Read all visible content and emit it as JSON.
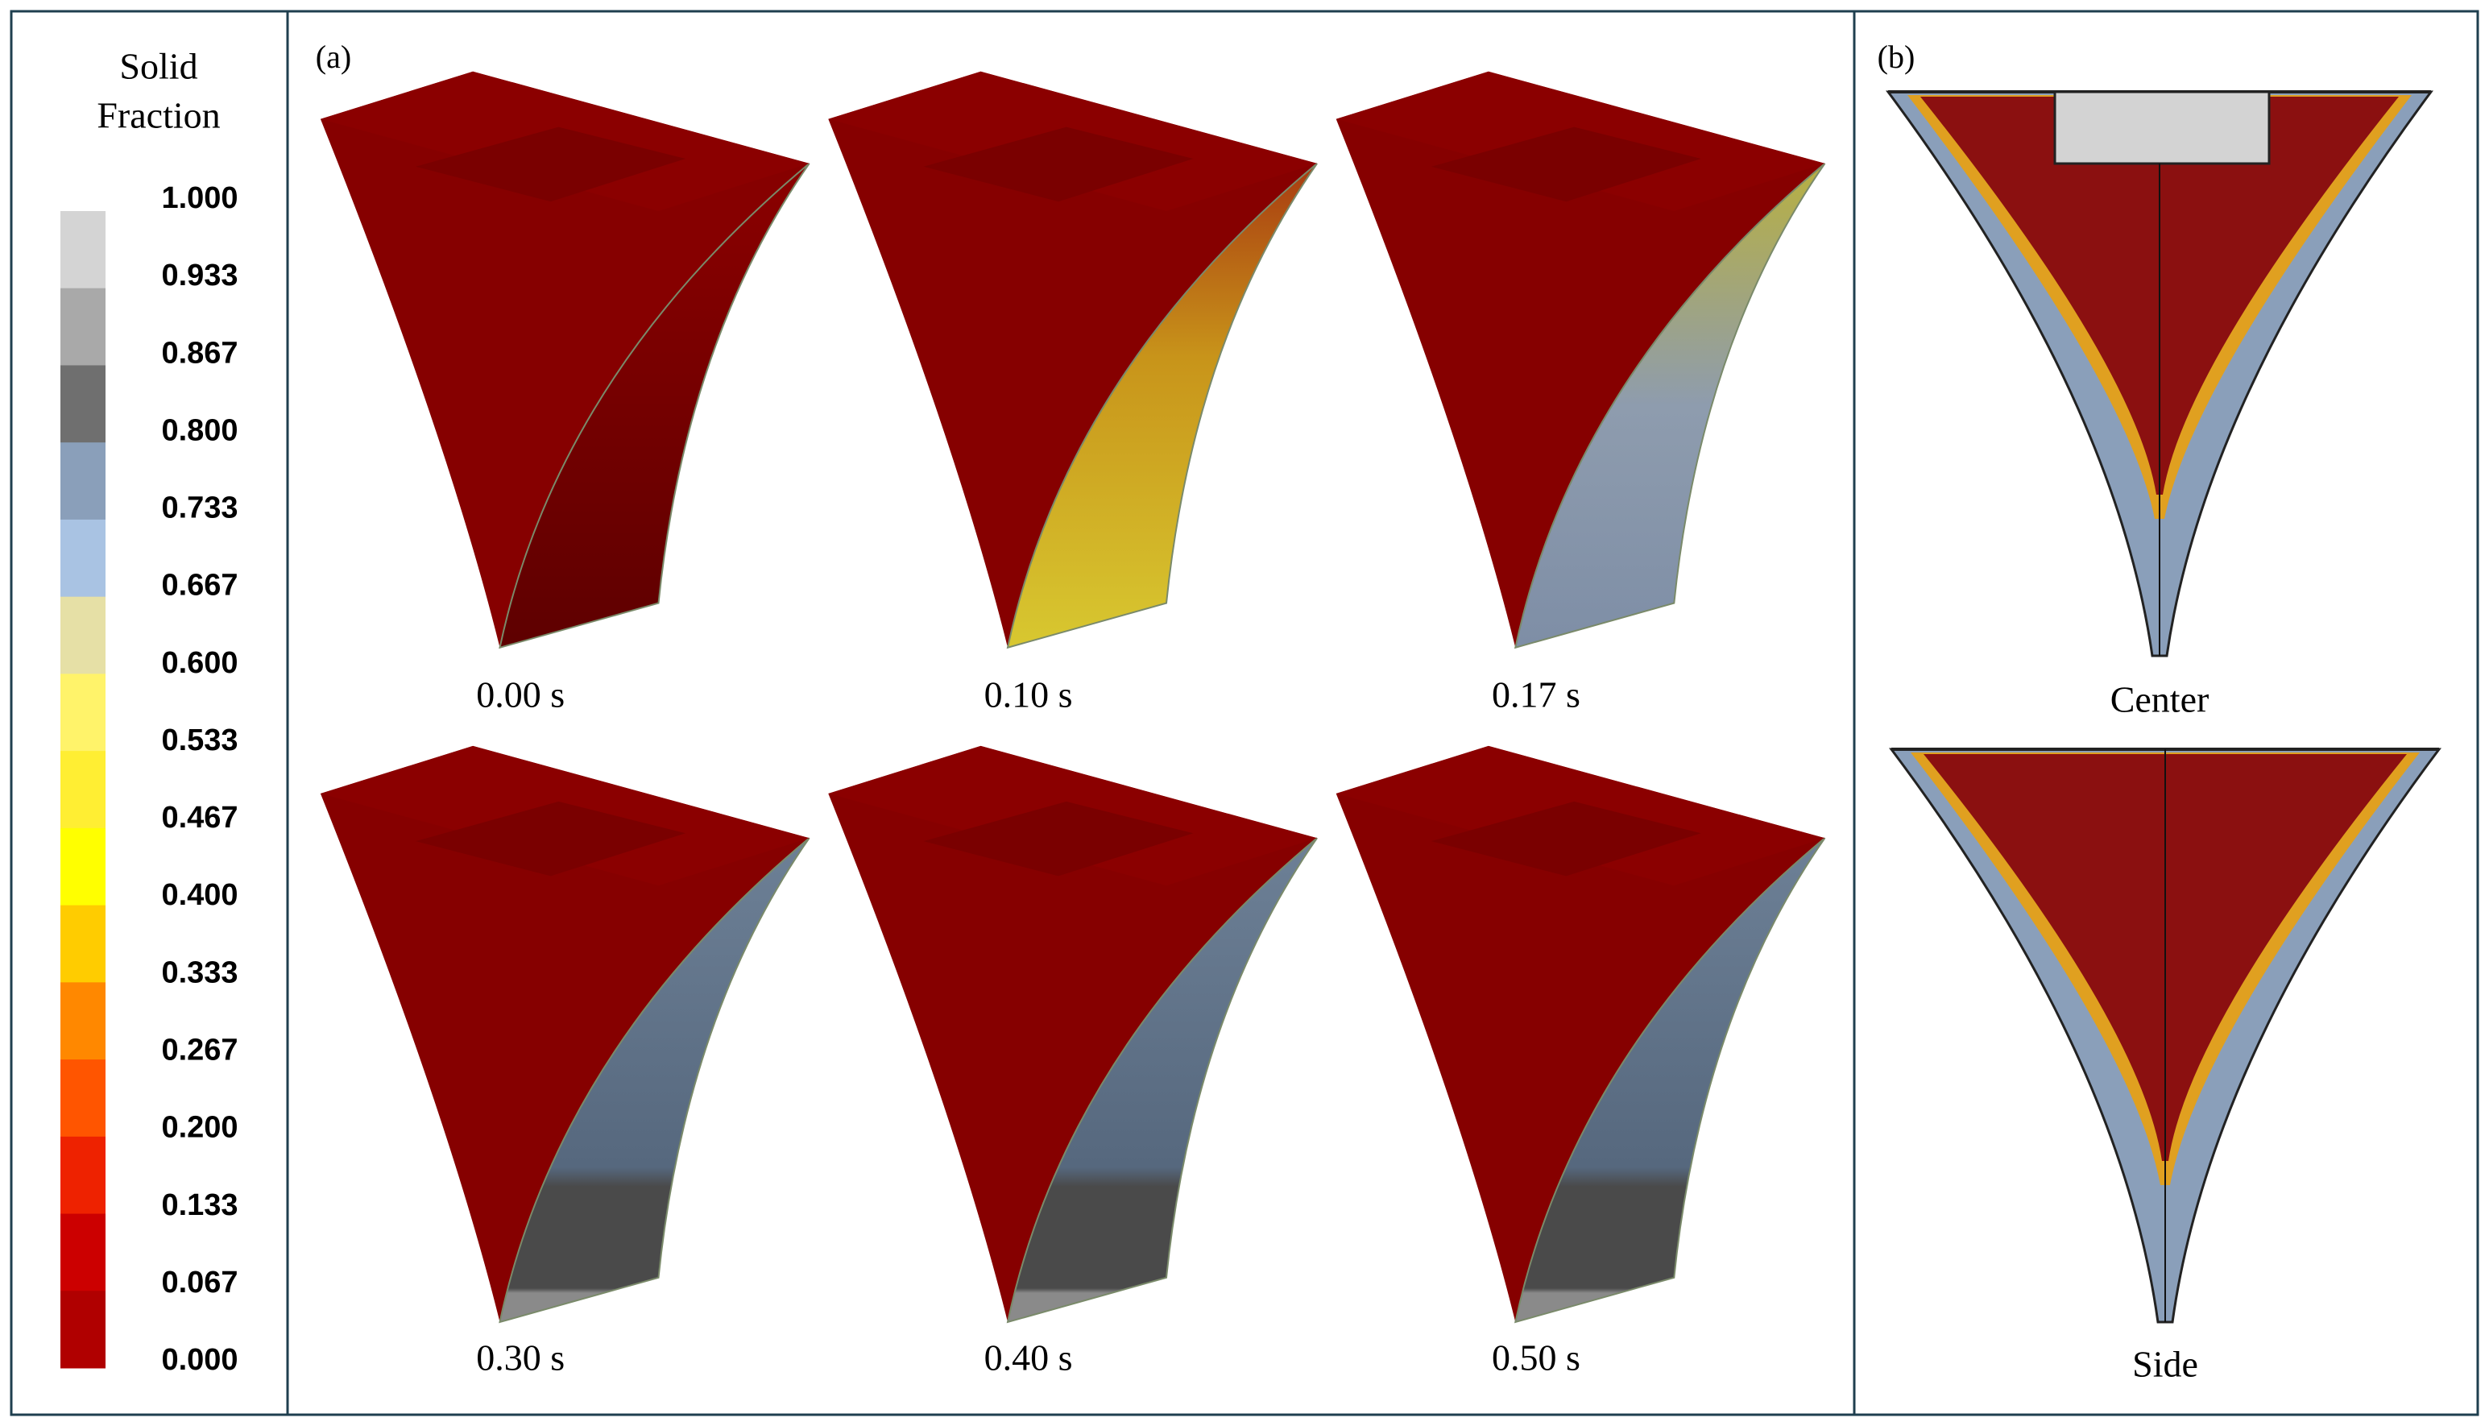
{
  "legend": {
    "title": [
      "Solid",
      "Fraction"
    ],
    "ticks": [
      "1.000",
      "0.933",
      "0.867",
      "0.800",
      "0.733",
      "0.667",
      "0.600",
      "0.533",
      "0.467",
      "0.400",
      "0.333",
      "0.267",
      "0.200",
      "0.133",
      "0.067",
      "0.000"
    ],
    "colors": [
      "#d4d4d4",
      "#a9a9a9",
      "#6f6f6f",
      "#8a9fba",
      "#a9c3e3",
      "#e6e0a6",
      "#fff36a",
      "#ffee33",
      "#ffff00",
      "#ffcc00",
      "#ff8800",
      "#ff5500",
      "#ee2200",
      "#cc0000",
      "#b00000"
    ]
  },
  "panel_a": {
    "label": "(a)",
    "frames": [
      {
        "time": "0.00 s"
      },
      {
        "time": "0.10 s"
      },
      {
        "time": "0.17 s"
      },
      {
        "time": "0.30 s"
      },
      {
        "time": "0.40 s"
      },
      {
        "time": "0.50 s"
      }
    ]
  },
  "panel_b": {
    "label": "(b)",
    "sections": [
      {
        "name": "Center"
      },
      {
        "name": "Side"
      }
    ]
  }
}
